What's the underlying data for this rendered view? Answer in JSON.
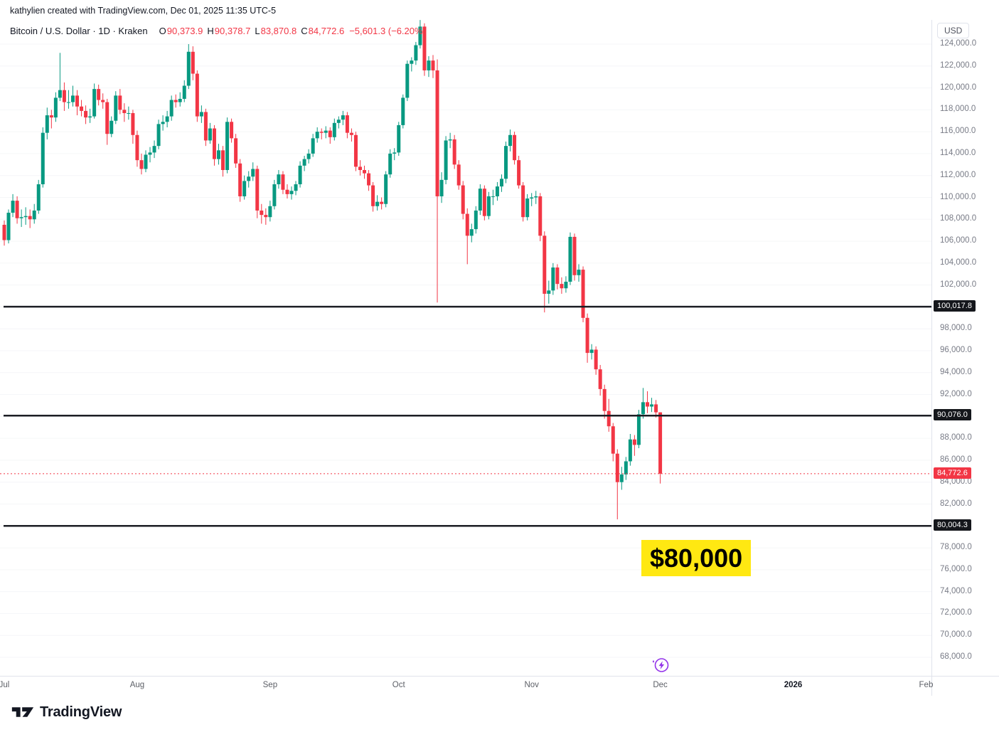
{
  "header": {
    "attribution": "kathylien created with TradingView.com, Dec 01, 2025 11:35 UTC-5"
  },
  "legend": {
    "symbol": "Bitcoin / U.S. Dollar · 1D · Kraken",
    "o_label": "O",
    "o": "90,373.9",
    "h_label": "H",
    "h": "90,378.7",
    "l_label": "L",
    "l": "83,870.8",
    "c_label": "C",
    "c": "84,772.6",
    "change": "−5,601.3 (−6.20%)"
  },
  "footer": {
    "brand": "TradingView"
  },
  "colors": {
    "up": "#089981",
    "down": "#f23645",
    "level_line": "#1c1e24",
    "level_label_bg": "#15171c",
    "last_price": "#f23645",
    "highlight": "#ffe812",
    "event_purple": "#9333ea",
    "axis_text": "#787b86",
    "grid": "#f5f6f8",
    "border": "#e0e3eb"
  },
  "chart_data": {
    "type": "candlestick",
    "title": "Bitcoin / U.S. Dollar · 1D · Kraken",
    "symbol": "BTCUSD",
    "exchange": "Kraken",
    "interval": "1D",
    "ohlc_format": "[open, high, low, close]",
    "x": {
      "start_date": "2025-07-01",
      "labels": [
        {
          "text": "Jul",
          "day": 0
        },
        {
          "text": "Aug",
          "day": 31
        },
        {
          "text": "Sep",
          "day": 62
        },
        {
          "text": "Oct",
          "day": 92
        },
        {
          "text": "Nov",
          "day": 123
        },
        {
          "text": "Dec",
          "day": 153
        },
        {
          "text": "2026",
          "day": 184,
          "year": true
        },
        {
          "text": "Feb",
          "day": 215
        }
      ]
    },
    "y": {
      "unit": "USD",
      "visible_min": 66300,
      "visible_max": 126200,
      "tick_step": 2000,
      "ticks": [
        124000,
        122000,
        120000,
        118000,
        116000,
        114000,
        112000,
        110000,
        108000,
        106000,
        104000,
        102000,
        100000,
        98000,
        96000,
        94000,
        92000,
        90000,
        88000,
        86000,
        84000,
        82000,
        80000,
        78000,
        76000,
        74000,
        72000,
        70000,
        68000
      ],
      "hidden_ticks": [
        100000,
        90000,
        80000
      ]
    },
    "levels": [
      {
        "value": 100017.8,
        "label": "100,017.8"
      },
      {
        "value": 90076.0,
        "label": "90,076.0"
      },
      {
        "value": 80004.3,
        "label": "80,004.3"
      }
    ],
    "last_price": {
      "value": 84772.6,
      "label": "84,772.6",
      "direction": "down"
    },
    "annotations": [
      {
        "type": "highlighted-text",
        "text": "$80,000",
        "near_price": 77500,
        "near_date": "2025-11-27"
      }
    ],
    "event_marker": {
      "icon": "lightning",
      "date": "2025-12-01"
    },
    "candles": [
      [
        107500,
        107900,
        105600,
        106100
      ],
      [
        106100,
        108900,
        105800,
        108600
      ],
      [
        108600,
        110300,
        108200,
        109700
      ],
      [
        109700,
        110100,
        107600,
        108100
      ],
      [
        108100,
        108900,
        107300,
        108200
      ],
      [
        108200,
        109100,
        107500,
        108300
      ],
      [
        108300,
        108900,
        107200,
        108000
      ],
      [
        108000,
        109400,
        107600,
        108800
      ],
      [
        108800,
        111600,
        108500,
        111200
      ],
      [
        111200,
        116400,
        110900,
        115900
      ],
      [
        115900,
        118200,
        115300,
        117500
      ],
      [
        117500,
        118000,
        116300,
        117300
      ],
      [
        117300,
        119600,
        116900,
        119100
      ],
      [
        119100,
        123200,
        118800,
        119800
      ],
      [
        119800,
        120500,
        117900,
        118700
      ],
      [
        118700,
        119800,
        118100,
        118700
      ],
      [
        118700,
        120200,
        118300,
        119300
      ],
      [
        119300,
        119800,
        117500,
        118300
      ],
      [
        118300,
        118900,
        117400,
        117900
      ],
      [
        117900,
        118400,
        116700,
        117300
      ],
      [
        117300,
        118100,
        116800,
        117400
      ],
      [
        117400,
        120400,
        117200,
        119900
      ],
      [
        119900,
        120300,
        118400,
        118900
      ],
      [
        118900,
        119500,
        118100,
        118700
      ],
      [
        118700,
        119000,
        114800,
        115800
      ],
      [
        115800,
        117400,
        115500,
        117000
      ],
      [
        117000,
        119700,
        116700,
        119300
      ],
      [
        119300,
        119900,
        117600,
        118000
      ],
      [
        118000,
        118600,
        116900,
        117700
      ],
      [
        117700,
        118300,
        117100,
        117700
      ],
      [
        117700,
        118000,
        114900,
        115700
      ],
      [
        115700,
        116100,
        112800,
        113400
      ],
      [
        113400,
        114000,
        112100,
        112600
      ],
      [
        112600,
        114300,
        112300,
        113900
      ],
      [
        113900,
        114600,
        113200,
        114100
      ],
      [
        114100,
        115200,
        113600,
        114700
      ],
      [
        114700,
        117100,
        114400,
        116700
      ],
      [
        116700,
        117500,
        116100,
        116900
      ],
      [
        116900,
        117900,
        116400,
        117400
      ],
      [
        117400,
        119300,
        117000,
        118900
      ],
      [
        118900,
        119400,
        118200,
        118700
      ],
      [
        118700,
        119600,
        118300,
        119000
      ],
      [
        119000,
        120700,
        118700,
        120200
      ],
      [
        120200,
        124000,
        119900,
        123300
      ],
      [
        123300,
        123800,
        120700,
        121300
      ],
      [
        121300,
        121600,
        116900,
        117400
      ],
      [
        117400,
        118400,
        116800,
        117800
      ],
      [
        117800,
        118100,
        114700,
        115200
      ],
      [
        115200,
        116800,
        114900,
        116300
      ],
      [
        116300,
        116600,
        112900,
        113500
      ],
      [
        113500,
        114900,
        113000,
        114300
      ],
      [
        114300,
        114700,
        111900,
        112500
      ],
      [
        112500,
        117300,
        112200,
        116900
      ],
      [
        116900,
        117200,
        115000,
        115400
      ],
      [
        115400,
        115800,
        112700,
        113100
      ],
      [
        113100,
        113500,
        109600,
        110100
      ],
      [
        110100,
        112000,
        109800,
        111500
      ],
      [
        111500,
        112400,
        110900,
        111900
      ],
      [
        111900,
        113200,
        111500,
        112600
      ],
      [
        112600,
        112900,
        108100,
        108800
      ],
      [
        108800,
        109400,
        107600,
        108400
      ],
      [
        108400,
        109000,
        107500,
        108200
      ],
      [
        108200,
        109700,
        107800,
        109200
      ],
      [
        109200,
        111600,
        108900,
        111200
      ],
      [
        111200,
        112500,
        110800,
        112100
      ],
      [
        112100,
        112400,
        110300,
        110700
      ],
      [
        110700,
        111200,
        109900,
        110300
      ],
      [
        110300,
        111000,
        109800,
        110600
      ],
      [
        110600,
        111500,
        110200,
        111200
      ],
      [
        111200,
        113300,
        110900,
        112900
      ],
      [
        112900,
        113800,
        112400,
        113500
      ],
      [
        113500,
        114400,
        113100,
        114000
      ],
      [
        114000,
        115800,
        113700,
        115400
      ],
      [
        115400,
        116400,
        115000,
        116000
      ],
      [
        116000,
        116300,
        115300,
        115900
      ],
      [
        115900,
        116500,
        115400,
        116100
      ],
      [
        116100,
        116400,
        114900,
        115500
      ],
      [
        115500,
        117200,
        115200,
        116800
      ],
      [
        116800,
        117400,
        116300,
        117100
      ],
      [
        117100,
        117900,
        116600,
        117500
      ],
      [
        117500,
        117800,
        115400,
        115900
      ],
      [
        115900,
        116300,
        115100,
        115700
      ],
      [
        115700,
        116000,
        112400,
        112800
      ],
      [
        112800,
        113400,
        112000,
        112500
      ],
      [
        112500,
        112900,
        111700,
        112200
      ],
      [
        112200,
        112500,
        110600,
        111100
      ],
      [
        111100,
        111400,
        108700,
        109200
      ],
      [
        109200,
        110200,
        108800,
        109600
      ],
      [
        109600,
        110000,
        108900,
        109400
      ],
      [
        109400,
        112400,
        109100,
        112100
      ],
      [
        112100,
        114400,
        111800,
        114000
      ],
      [
        114000,
        114500,
        113400,
        114100
      ],
      [
        114100,
        116900,
        113800,
        116600
      ],
      [
        116600,
        119400,
        116300,
        119100
      ],
      [
        119100,
        122500,
        118800,
        122200
      ],
      [
        122200,
        122800,
        121500,
        122500
      ],
      [
        122500,
        124200,
        122100,
        123900
      ],
      [
        123900,
        126200,
        123600,
        125600
      ],
      [
        125600,
        125900,
        121100,
        121600
      ],
      [
        121600,
        122900,
        121000,
        122500
      ],
      [
        122500,
        123000,
        120900,
        121600
      ],
      [
        121600,
        122600,
        100400,
        110100
      ],
      [
        110100,
        112300,
        109500,
        111600
      ],
      [
        111600,
        115600,
        111200,
        115200
      ],
      [
        115200,
        115900,
        114500,
        115300
      ],
      [
        115300,
        115700,
        112600,
        113000
      ],
      [
        113000,
        113400,
        110700,
        111100
      ],
      [
        111100,
        111500,
        108000,
        108500
      ],
      [
        108500,
        109000,
        103900,
        106500
      ],
      [
        106500,
        107600,
        105900,
        107100
      ],
      [
        107100,
        109200,
        106700,
        108800
      ],
      [
        108800,
        111200,
        108400,
        110800
      ],
      [
        110800,
        111100,
        107900,
        108300
      ],
      [
        108300,
        110500,
        108000,
        110100
      ],
      [
        110100,
        110700,
        109300,
        110100
      ],
      [
        110100,
        111400,
        109700,
        111000
      ],
      [
        111000,
        112100,
        110500,
        111700
      ],
      [
        111700,
        115100,
        111300,
        114700
      ],
      [
        114700,
        116200,
        114200,
        115700
      ],
      [
        115700,
        116000,
        113000,
        113400
      ],
      [
        113400,
        113800,
        110800,
        111100
      ],
      [
        111100,
        111400,
        107800,
        108200
      ],
      [
        108200,
        110300,
        107900,
        109900
      ],
      [
        109900,
        110400,
        109200,
        110000
      ],
      [
        110000,
        110600,
        109400,
        110100
      ],
      [
        110100,
        110400,
        106000,
        106500
      ],
      [
        106500,
        106900,
        99500,
        101200
      ],
      [
        101200,
        102400,
        100300,
        101500
      ],
      [
        101500,
        104000,
        101100,
        103600
      ],
      [
        103600,
        103900,
        101600,
        102100
      ],
      [
        102100,
        102700,
        101200,
        101700
      ],
      [
        101700,
        102800,
        101300,
        102300
      ],
      [
        102300,
        106800,
        102000,
        106400
      ],
      [
        106400,
        106700,
        102400,
        102900
      ],
      [
        102900,
        103900,
        102300,
        103400
      ],
      [
        103400,
        103700,
        98600,
        99000
      ],
      [
        99000,
        99400,
        94900,
        95800
      ],
      [
        95800,
        96600,
        95200,
        96100
      ],
      [
        96100,
        96400,
        93800,
        94300
      ],
      [
        94300,
        94700,
        91900,
        92500
      ],
      [
        92500,
        92900,
        89800,
        90500
      ],
      [
        90500,
        91600,
        88600,
        89100
      ],
      [
        89100,
        89400,
        85900,
        86600
      ],
      [
        86600,
        87000,
        80600,
        84000
      ],
      [
        84000,
        85400,
        83300,
        84700
      ],
      [
        84700,
        86300,
        84200,
        85900
      ],
      [
        85900,
        88400,
        85500,
        87900
      ],
      [
        87900,
        88300,
        86400,
        87400
      ],
      [
        87400,
        90600,
        87100,
        90200
      ],
      [
        90200,
        92600,
        89800,
        91300
      ],
      [
        91300,
        92300,
        90300,
        90900
      ],
      [
        90900,
        91700,
        90400,
        91100
      ],
      [
        91100,
        91500,
        89900,
        90374
      ],
      [
        90373.9,
        90378.7,
        83870.8,
        84772.6
      ]
    ]
  }
}
